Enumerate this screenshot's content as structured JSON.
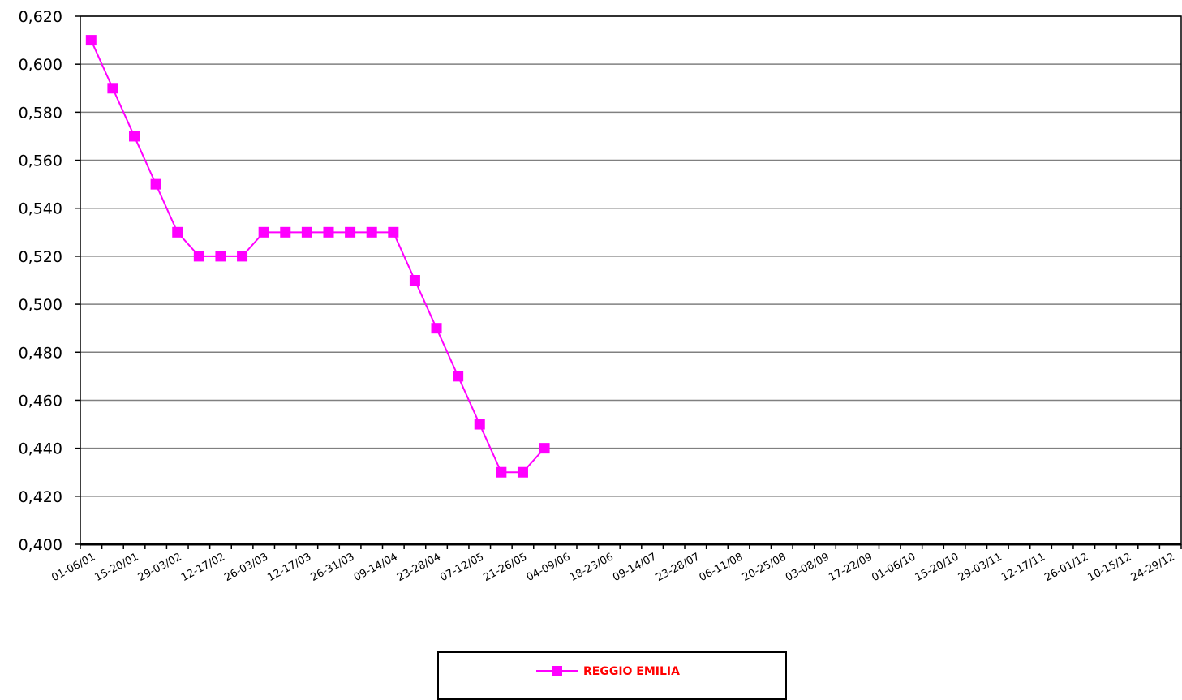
{
  "chart_data": {
    "type": "line",
    "title": "",
    "xlabel": "",
    "ylabel": "",
    "ylim": [
      0.4,
      0.62
    ],
    "y_ticks": [
      "0,400",
      "0,420",
      "0,440",
      "0,460",
      "0,480",
      "0,500",
      "0,520",
      "0,540",
      "0,560",
      "0,580",
      "0,600",
      "0,620"
    ],
    "grid": "horizontal",
    "legend_position": "bottom",
    "x_tick_labels": [
      "01-06/01",
      "15-20/01",
      "29-03/02",
      "12-17/02",
      "26-03/03",
      "12-17/03",
      "26-31/03",
      "09-14/04",
      "23-28/04",
      "07-12/05",
      "21-26/05",
      "04-09/06",
      "18-23/06",
      "09-14/07",
      "23-28/07",
      "06-11/08",
      "20-25/08",
      "03-08/09",
      "17-22/09",
      "01-06/10",
      "15-20/10",
      "29-03/11",
      "12-17/11",
      "26-01/12",
      "10-15/12",
      "24-29/12"
    ],
    "total_periods": 51,
    "series": [
      {
        "name": "REGGIO EMILIA",
        "color": "#ff00ff",
        "values": [
          0.61,
          0.59,
          0.57,
          0.55,
          0.53,
          0.52,
          0.52,
          0.52,
          0.53,
          0.53,
          0.53,
          0.53,
          0.53,
          0.53,
          0.53,
          0.51,
          0.49,
          0.47,
          0.45,
          0.43,
          0.43,
          0.44
        ]
      }
    ],
    "legend_label_color": "#ff0000"
  }
}
